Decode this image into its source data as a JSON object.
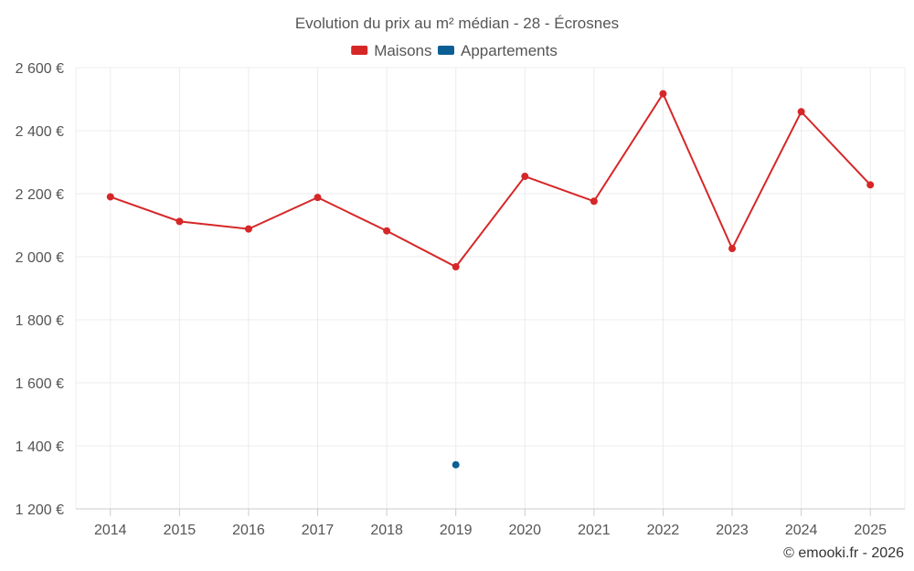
{
  "chart_data": {
    "type": "line",
    "title": "Evolution du prix au m² médian - 28 - Écrosnes",
    "xlabel": "",
    "ylabel": "",
    "categories": [
      "2014",
      "2015",
      "2016",
      "2017",
      "2018",
      "2019",
      "2020",
      "2021",
      "2022",
      "2023",
      "2024",
      "2025"
    ],
    "ylim": [
      1200,
      2600
    ],
    "yticks": [
      1200,
      1400,
      1600,
      1800,
      2000,
      2200,
      2400,
      2600
    ],
    "ytick_labels": [
      "1 200 €",
      "1 400 €",
      "1 600 €",
      "1 800 €",
      "2 000 €",
      "2 200 €",
      "2 400 €",
      "2 600 €"
    ],
    "grid": true,
    "legend_position": "top-center",
    "series": [
      {
        "name": "Maisons",
        "color": "#d62728",
        "values": [
          2190,
          2112,
          2088,
          2188,
          2082,
          1968,
          2255,
          2176,
          2517,
          2026,
          2460,
          2228
        ]
      },
      {
        "name": "Appartements",
        "color": "#0b5f95",
        "values": [
          null,
          null,
          null,
          null,
          null,
          1340,
          null,
          null,
          null,
          null,
          null,
          null
        ]
      }
    ]
  },
  "credit": "© emooki.fr - 2026"
}
